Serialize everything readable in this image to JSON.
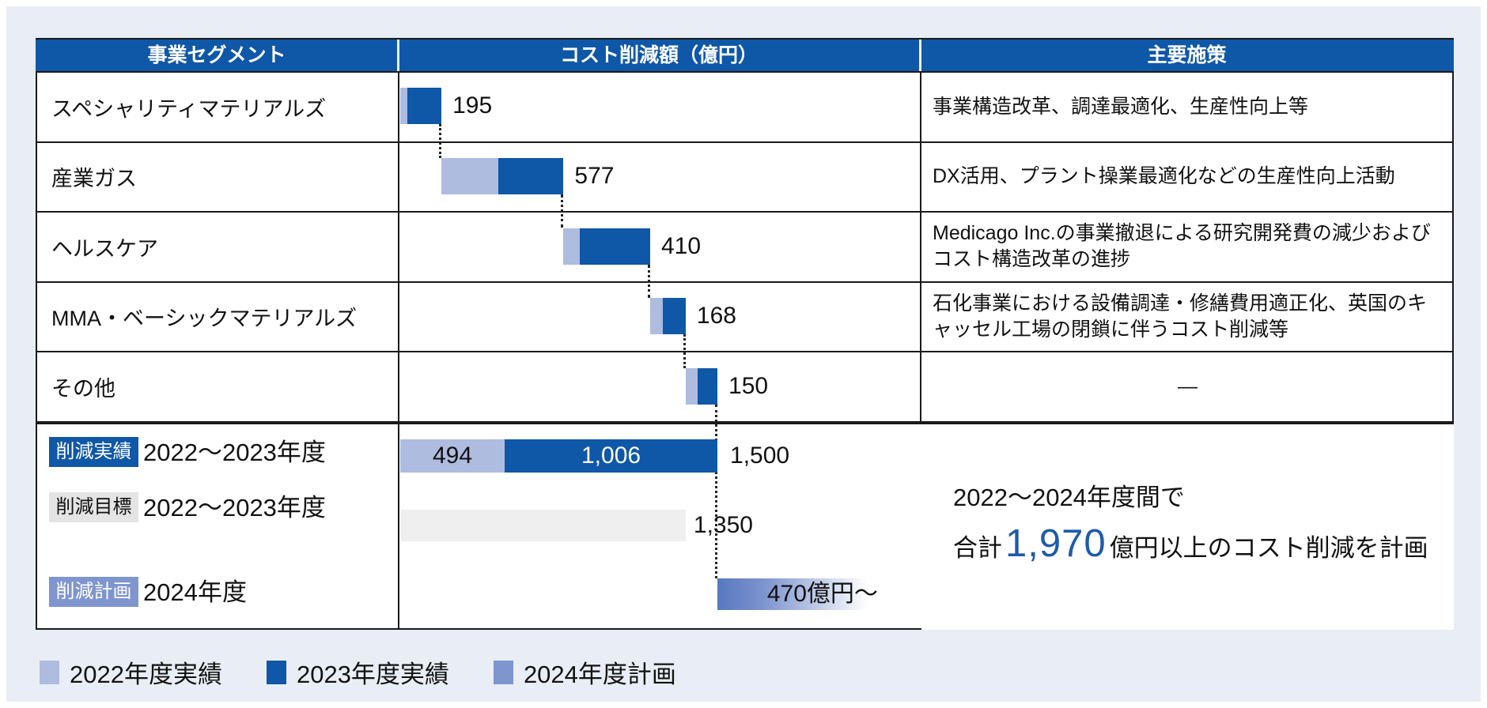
{
  "table": {
    "headers": [
      "事業セグメント",
      "コスト削減額（億円）",
      "主要施策"
    ],
    "rows": [
      {
        "segment": "スペシャリティマテリアルズ",
        "policy": "事業構造改革、調達最適化、生産性向上等"
      },
      {
        "segment": "産業ガス",
        "policy": "DX活用、プラント操業最適化などの生産性向上活動"
      },
      {
        "segment": "ヘルスケア",
        "policy": "Medicago Inc.の事業撤退による研究開発費の減少およびコスト構造改革の進捗"
      },
      {
        "segment": "MMA・ベーシックマテリアルズ",
        "policy": "石化事業における設備調達・修繕費用適正化、英国のキャッセル工場の閉鎖に伴うコスト削減等"
      },
      {
        "segment": "その他",
        "policy": "—"
      }
    ]
  },
  "summary": {
    "note_line1": "2022〜2024年度間で",
    "note_prefix": "合計",
    "note_value": "1,970",
    "note_suffix": "億円以上のコスト削減を計画"
  },
  "legend": {
    "items": [
      {
        "label": "2022年度実績",
        "color_key": "fy2022"
      },
      {
        "label": "2023年度実績",
        "color_key": "fy2023"
      },
      {
        "label": "2024年度計画",
        "color_key": "fy2024"
      }
    ]
  },
  "chart_data": {
    "type": "bar",
    "subtype": "horizontal-waterfall",
    "unit": "億円",
    "scale_max": 2450,
    "waterfall_total": 1500,
    "segments": [
      {
        "id": "specialty-materials",
        "name": "スペシャリティマテリアルズ",
        "total": 195,
        "label": "195",
        "fy2022_est": 33,
        "fy2023_est": 162
      },
      {
        "id": "industrial-gases",
        "name": "産業ガス",
        "total": 577,
        "label": "577",
        "fy2022_est": 270,
        "fy2023_est": 307
      },
      {
        "id": "healthcare",
        "name": "ヘルスケア",
        "total": 410,
        "label": "410",
        "fy2022_est": 78,
        "fy2023_est": 332
      },
      {
        "id": "mma-basic-materials",
        "name": "MMA・ベーシックマテリアルズ",
        "total": 168,
        "label": "168",
        "fy2022_est": 58,
        "fy2023_est": 110
      },
      {
        "id": "others",
        "name": "その他",
        "total": 150,
        "label": "150",
        "fy2022_est": 55,
        "fy2023_est": 95
      }
    ],
    "actual": {
      "badge": "削減実績",
      "period": "2022〜2023年度",
      "fy2022": 494,
      "fy2022_label": "494",
      "fy2023": 1006,
      "fy2023_label": "1,006",
      "total": 1500,
      "total_label": "1,500"
    },
    "target": {
      "badge": "削減目標",
      "period": "2022〜2023年度",
      "value": 1350,
      "value_label": "1,350"
    },
    "plan": {
      "badge": "削減計画",
      "period": "2024年度",
      "value": 470,
      "value_label": "470億円〜",
      "start": 1500
    },
    "colors": {
      "fy2022": "#AEBCE0",
      "fy2023": "#0F57A7",
      "fy2024": "#7E95CE",
      "target_bar": "#EFEFEF",
      "header": "#0F57A7",
      "note_value": "#1F5BA9",
      "plan_gradient_start": "#5878C0"
    }
  }
}
